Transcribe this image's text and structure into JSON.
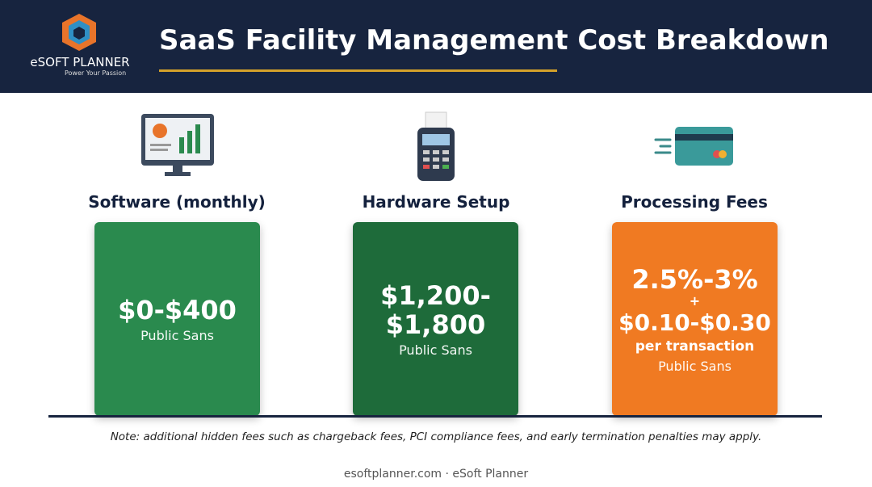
{
  "header": {
    "logo_name": "eSOFT PLANNER",
    "logo_tagline": "Power Your Passion",
    "title": "SaaS Facility Management Cost Breakdown"
  },
  "cards": [
    {
      "heading": "Software (monthly)",
      "value_lines": [
        "$0-$400"
      ],
      "font_note": "Public Sans"
    },
    {
      "heading": "Hardware Setup",
      "value_lines": [
        "$1,200-",
        "$1,800"
      ],
      "font_note": "Public Sans"
    },
    {
      "heading": "Processing Fees",
      "value_lines": [
        "2.5%-3%",
        "+",
        "$0.10-$0.30",
        "per transaction"
      ],
      "font_note": "Public Sans"
    }
  ],
  "note": "Note: additional hidden fees such as chargeback fees, PCI compliance fees, and early termination penalties may apply.",
  "footer": "esoftplanner.com · eSoft Planner"
}
